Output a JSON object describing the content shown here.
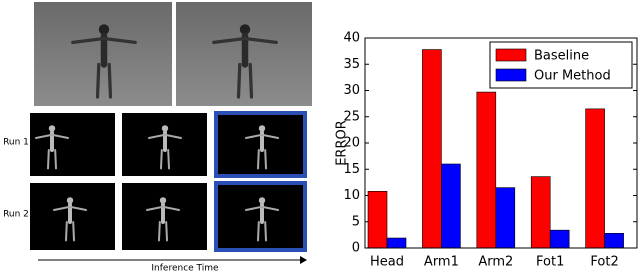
{
  "figure": {
    "row_labels": [
      "Run 1",
      "Run 2"
    ],
    "time_axis_label": "Inference Time"
  },
  "chart_data": {
    "type": "bar",
    "categories": [
      "Head",
      "Arm1",
      "Arm2",
      "Fot1",
      "Fot2"
    ],
    "series": [
      {
        "name": "Baseline",
        "color": "#ff0000",
        "values": [
          10.8,
          37.8,
          29.7,
          13.6,
          26.5
        ]
      },
      {
        "name": "Our Method",
        "color": "#0000ff",
        "values": [
          1.9,
          16.0,
          11.5,
          3.4,
          2.8
        ]
      }
    ],
    "y_label": "ERROR",
    "ylim": [
      0,
      40
    ],
    "yticks": [
      0,
      5,
      10,
      15,
      20,
      25,
      30,
      35,
      40
    ],
    "legend": "upper right"
  }
}
